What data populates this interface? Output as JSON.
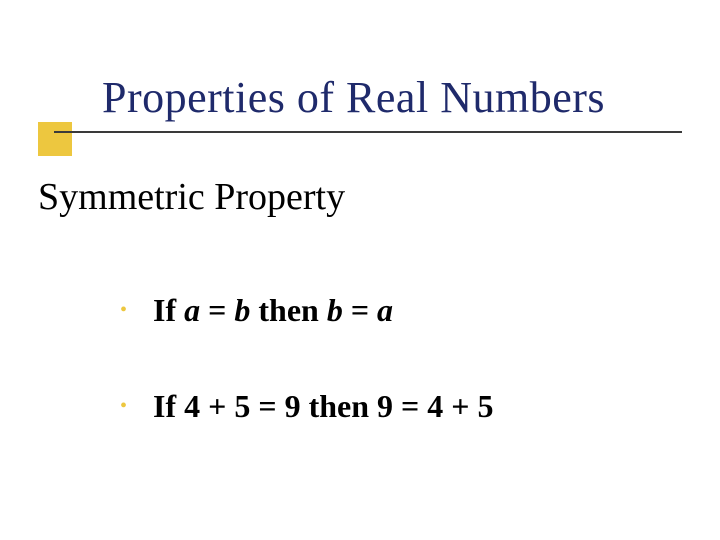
{
  "slide": {
    "title": "Properties of Real Numbers",
    "subtitle": "Symmetric Property",
    "title_color": "#1f2a6b",
    "accent_color": "#edc73f",
    "rule_color": "#3a3a3a",
    "bullet_color": "#edc73f",
    "background_color": "#ffffff",
    "text_color": "#000000",
    "title_fontsize": 44,
    "subtitle_fontsize": 38,
    "bullet_fontsize": 32,
    "bullets": [
      {
        "prefix": "If ",
        "var1": "a",
        "mid1": " = ",
        "var2": "b",
        "mid2": " then ",
        "var3": "b",
        "mid3": " = ",
        "var4": "a",
        "has_italics": true
      },
      {
        "full": "If 4 + 5 = 9 then 9 = 4 + 5",
        "has_italics": false
      }
    ]
  }
}
